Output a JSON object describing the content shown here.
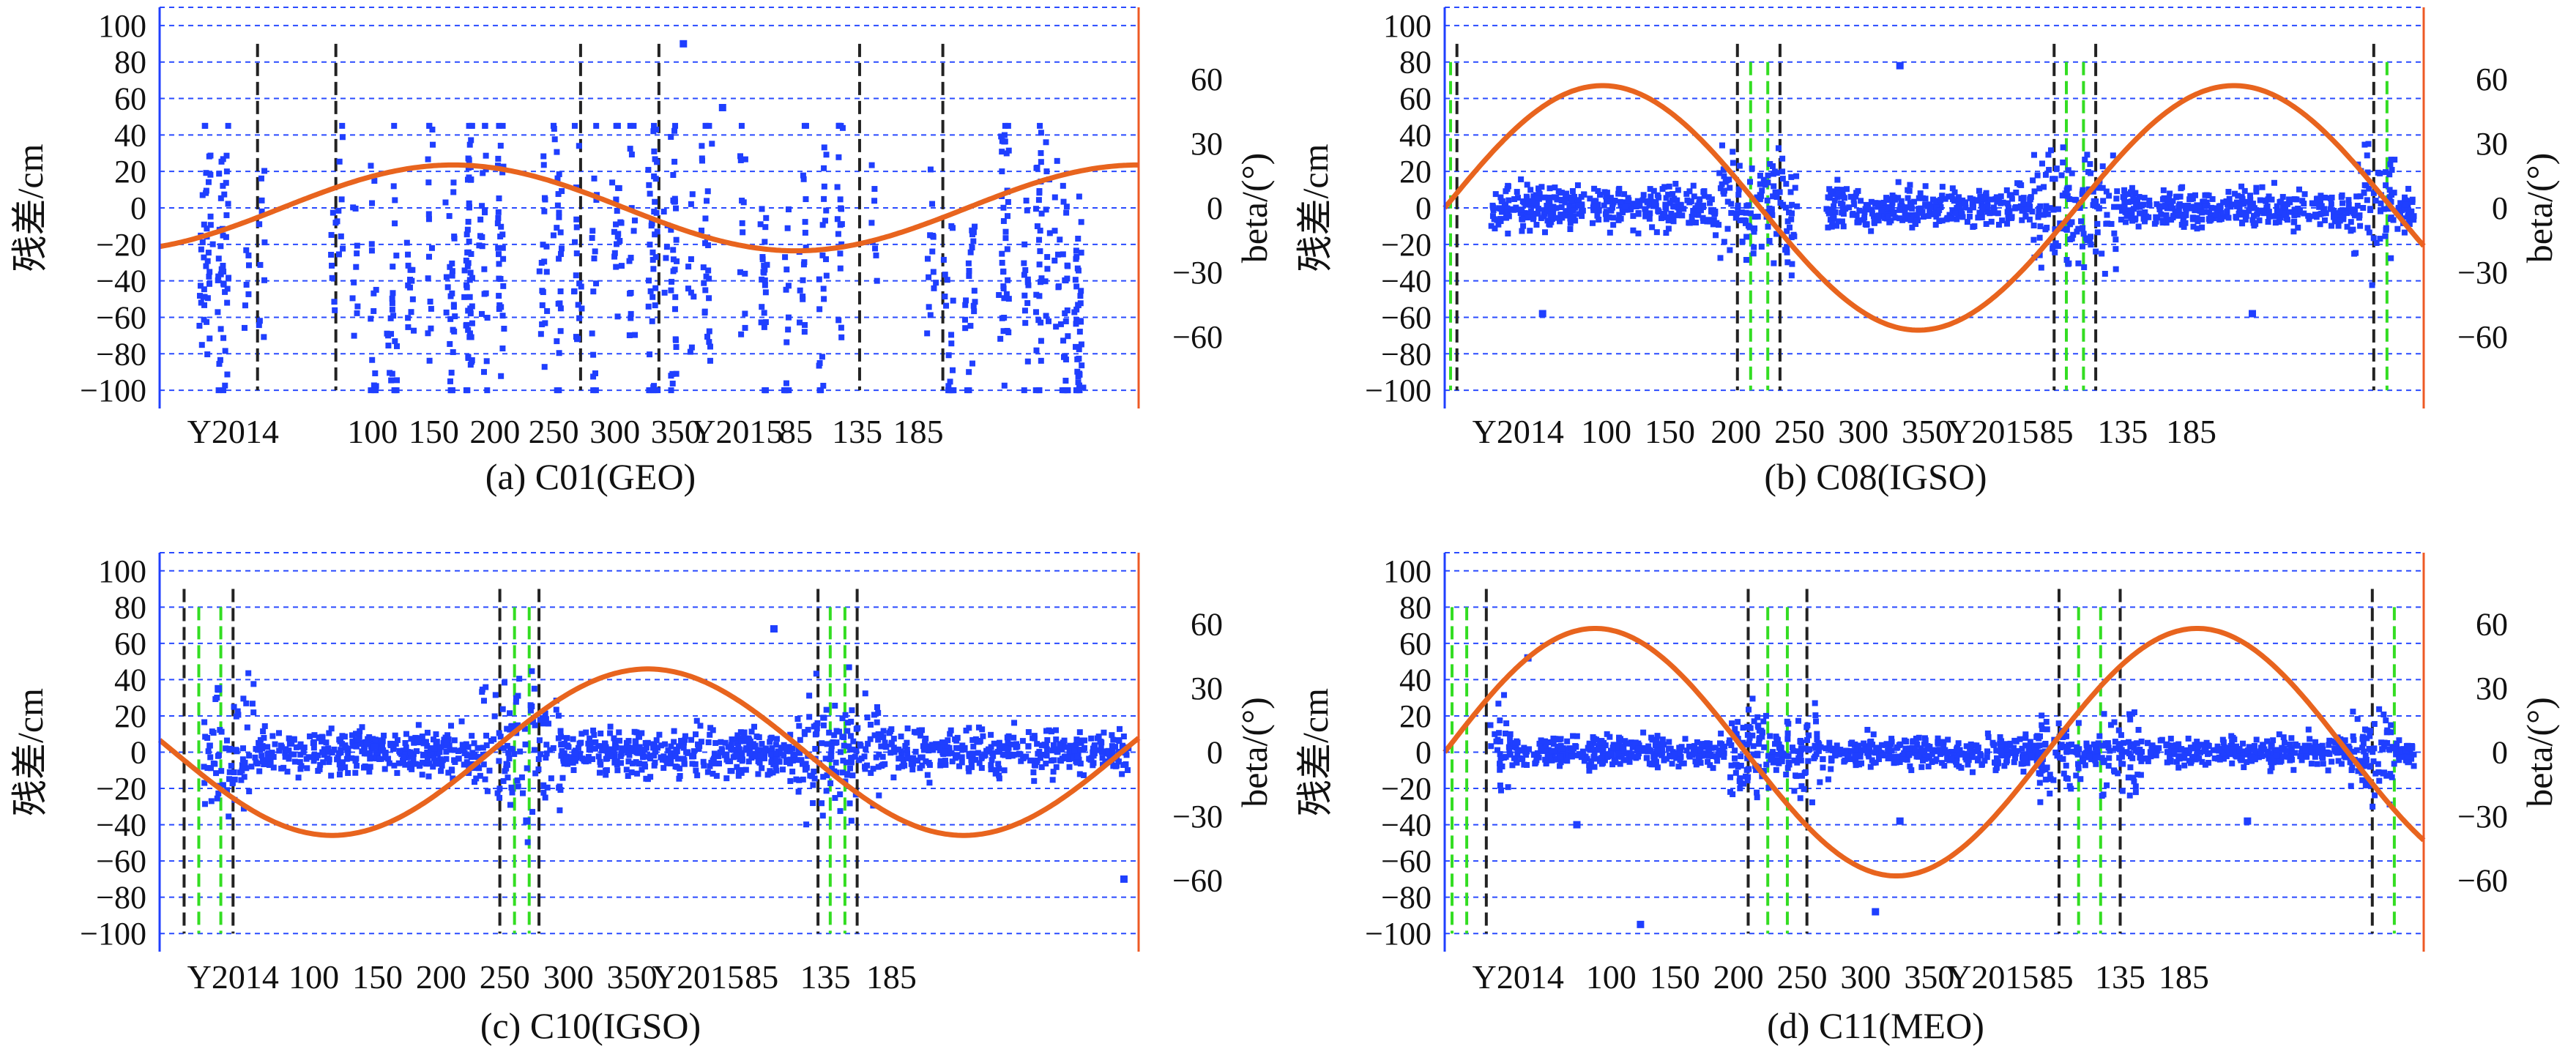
{
  "figure": {
    "layout": "2x2",
    "colors": {
      "axis_left": "#1f3fff",
      "axis_right": "#ee5a24",
      "grid": "#2a4bff",
      "residual_points": "#1f3fff",
      "beta_curve": "#e8641e",
      "eclipse_boundary": "#222222",
      "noon_midnight": "#33dd22",
      "text": "#111111"
    }
  },
  "chart_data": [
    {
      "id": "a",
      "type": "scatter",
      "title": "(a) C01(GEO)",
      "ylabel": "残差/cm",
      "y2label": "beta/(°)",
      "xlim": [
        0,
        20
      ],
      "ylim": [
        -110,
        110
      ],
      "y2lim": [
        -93.5,
        93.5
      ],
      "yticks": [
        100,
        80,
        60,
        40,
        20,
        0,
        -20,
        -40,
        -60,
        -80,
        -100
      ],
      "y2ticks": [
        60,
        30,
        0,
        -30,
        -60
      ],
      "xticks": [
        {
          "x": 1.5,
          "label": "Y2014"
        },
        {
          "x": 4.35,
          "label": "100"
        },
        {
          "x": 5.6,
          "label": "150"
        },
        {
          "x": 6.85,
          "label": "200"
        },
        {
          "x": 8.05,
          "label": "250"
        },
        {
          "x": 9.3,
          "label": "300"
        },
        {
          "x": 10.55,
          "label": "350"
        },
        {
          "x": 11.8,
          "label": "Y2015"
        },
        {
          "x": 13.0,
          "label": "85"
        },
        {
          "x": 14.25,
          "label": "135"
        },
        {
          "x": 15.5,
          "label": "185"
        }
      ],
      "grid_y": [
        100,
        80,
        60,
        40,
        20,
        0,
        -20,
        -40,
        -60,
        -80,
        -100
      ],
      "beta_curve": {
        "amplitude": 20,
        "period": 14.0,
        "phase_zero": 2.5,
        "xstart": 0,
        "xend": 20
      },
      "eclipse_lines_black": [
        2.0,
        3.6,
        8.6,
        10.2,
        14.3,
        16.0
      ],
      "eclipse_lines_green": [],
      "residuals": {
        "mode": "scattered",
        "mean": -40,
        "spread": 35,
        "count": 900,
        "seed": 11
      },
      "dots": [
        {
          "x": 10.7,
          "y": 90
        },
        {
          "x": 11.5,
          "y": 55
        }
      ]
    },
    {
      "id": "b",
      "type": "scatter",
      "title": "(b) C08(IGSO)",
      "ylabel": "残差/cm",
      "y2label": "beta/(°)",
      "xlim": [
        0,
        20
      ],
      "ylim": [
        -110,
        110
      ],
      "y2lim": [
        -93.5,
        93.5
      ],
      "yticks": [
        100,
        80,
        60,
        40,
        20,
        0,
        -20,
        -40,
        -60,
        -80,
        -100
      ],
      "y2ticks": [
        60,
        30,
        0,
        -30,
        -60
      ],
      "xticks": [
        {
          "x": 1.5,
          "label": "Y2014"
        },
        {
          "x": 3.3,
          "label": "100"
        },
        {
          "x": 4.6,
          "label": "150"
        },
        {
          "x": 5.95,
          "label": "200"
        },
        {
          "x": 7.25,
          "label": "250"
        },
        {
          "x": 8.55,
          "label": "300"
        },
        {
          "x": 9.85,
          "label": "350"
        },
        {
          "x": 11.2,
          "label": "Y2015"
        },
        {
          "x": 12.5,
          "label": "85"
        },
        {
          "x": 13.85,
          "label": "135"
        },
        {
          "x": 15.25,
          "label": "185"
        }
      ],
      "grid_y": [
        100,
        80,
        60,
        40,
        20,
        0,
        -20,
        -40,
        -60,
        -80,
        -100
      ],
      "beta_curve": {
        "amplitude": 57,
        "period": 12.9,
        "phase_zero": 0.0,
        "xstart": 0,
        "xend": 20
      },
      "eclipse_lines_black": [
        0.25,
        5.98,
        6.85,
        12.45,
        13.3,
        18.98
      ],
      "eclipse_lines_green": [
        0.12,
        6.25,
        6.6,
        12.7,
        13.05,
        19.25
      ],
      "residuals": {
        "mode": "band",
        "mean": 0,
        "spread": 8,
        "count": 1400,
        "seed": 22,
        "gaps": [
          [
            7.2,
            7.8
          ]
        ]
      },
      "dots": [
        {
          "x": 9.3,
          "y": 78
        },
        {
          "x": 16.5,
          "y": -58
        },
        {
          "x": 2.0,
          "y": -58
        }
      ]
    },
    {
      "id": "c",
      "type": "scatter",
      "title": "(c) C10(IGSO)",
      "ylabel": "残差/cm",
      "y2label": "beta/(°)",
      "xlim": [
        0,
        20
      ],
      "ylim": [
        -110,
        110
      ],
      "y2lim": [
        -93.5,
        93.5
      ],
      "yticks": [
        100,
        80,
        60,
        40,
        20,
        0,
        -20,
        -40,
        -60,
        -80,
        -100
      ],
      "y2ticks": [
        60,
        30,
        0,
        -30,
        -60
      ],
      "xticks": [
        {
          "x": 1.5,
          "label": "Y2014"
        },
        {
          "x": 3.15,
          "label": "100"
        },
        {
          "x": 4.45,
          "label": "150"
        },
        {
          "x": 5.75,
          "label": "200"
        },
        {
          "x": 7.05,
          "label": "250"
        },
        {
          "x": 8.35,
          "label": "300"
        },
        {
          "x": 9.65,
          "label": "350"
        },
        {
          "x": 11.0,
          "label": "Y2015"
        },
        {
          "x": 12.3,
          "label": "85"
        },
        {
          "x": 13.6,
          "label": "135"
        },
        {
          "x": 14.95,
          "label": "185"
        }
      ],
      "grid_y": [
        100,
        80,
        60,
        40,
        20,
        0,
        -20,
        -40,
        -60,
        -80,
        -100
      ],
      "beta_curve": {
        "amplitude": 39,
        "period": 12.9,
        "phase_zero": 6.75,
        "xstart": 0,
        "xend": 20
      },
      "eclipse_lines_black": [
        0.5,
        1.5,
        6.95,
        7.75,
        13.45,
        14.25
      ],
      "eclipse_lines_green": [
        0.8,
        1.25,
        7.25,
        7.55,
        13.7,
        14.0
      ],
      "residuals": {
        "mode": "band",
        "mean": 0,
        "spread": 9,
        "count": 1400,
        "seed": 33,
        "gaps": []
      },
      "dots": [
        {
          "x": 12.55,
          "y": 68
        },
        {
          "x": 7.5,
          "y": -38
        },
        {
          "x": 19.7,
          "y": -70
        },
        {
          "x": 1.2,
          "y": 35
        }
      ]
    },
    {
      "id": "d",
      "type": "scatter",
      "title": "(d) C11(MEO)",
      "ylabel": "残差/cm",
      "y2label": "beta/(°)",
      "xlim": [
        0,
        20
      ],
      "ylim": [
        -110,
        110
      ],
      "y2lim": [
        -93.5,
        93.5
      ],
      "yticks": [
        100,
        80,
        60,
        40,
        20,
        0,
        -20,
        -40,
        -60,
        -80,
        -100
      ],
      "y2ticks": [
        60,
        30,
        0,
        -30,
        -60
      ],
      "xticks": [
        {
          "x": 1.5,
          "label": "Y2014"
        },
        {
          "x": 3.4,
          "label": "100"
        },
        {
          "x": 4.7,
          "label": "150"
        },
        {
          "x": 6.0,
          "label": "200"
        },
        {
          "x": 7.3,
          "label": "250"
        },
        {
          "x": 8.6,
          "label": "300"
        },
        {
          "x": 9.9,
          "label": "350"
        },
        {
          "x": 11.2,
          "label": "Y2015"
        },
        {
          "x": 12.5,
          "label": "85"
        },
        {
          "x": 13.8,
          "label": "135"
        },
        {
          "x": 15.1,
          "label": "185"
        }
      ],
      "grid_y": [
        100,
        80,
        60,
        40,
        20,
        0,
        -20,
        -40,
        -60,
        -80,
        -100
      ],
      "beta_curve": {
        "amplitude": 58,
        "period": 12.3,
        "phase_zero": 0.0,
        "xstart": 0,
        "xend": 20
      },
      "eclipse_lines_black": [
        0.85,
        6.2,
        7.4,
        12.55,
        13.8,
        18.95
      ],
      "eclipse_lines_green": [
        0.15,
        0.45,
        6.6,
        7.0,
        12.95,
        13.4,
        19.4
      ],
      "residuals": {
        "mode": "band",
        "mean": 0,
        "spread": 6,
        "count": 1400,
        "seed": 44,
        "gaps": []
      },
      "dots": [
        {
          "x": 1.7,
          "y": 52
        },
        {
          "x": 2.7,
          "y": -40
        },
        {
          "x": 4.0,
          "y": -95
        },
        {
          "x": 8.8,
          "y": -88
        },
        {
          "x": 16.4,
          "y": -38
        },
        {
          "x": 9.3,
          "y": -38
        }
      ]
    }
  ]
}
